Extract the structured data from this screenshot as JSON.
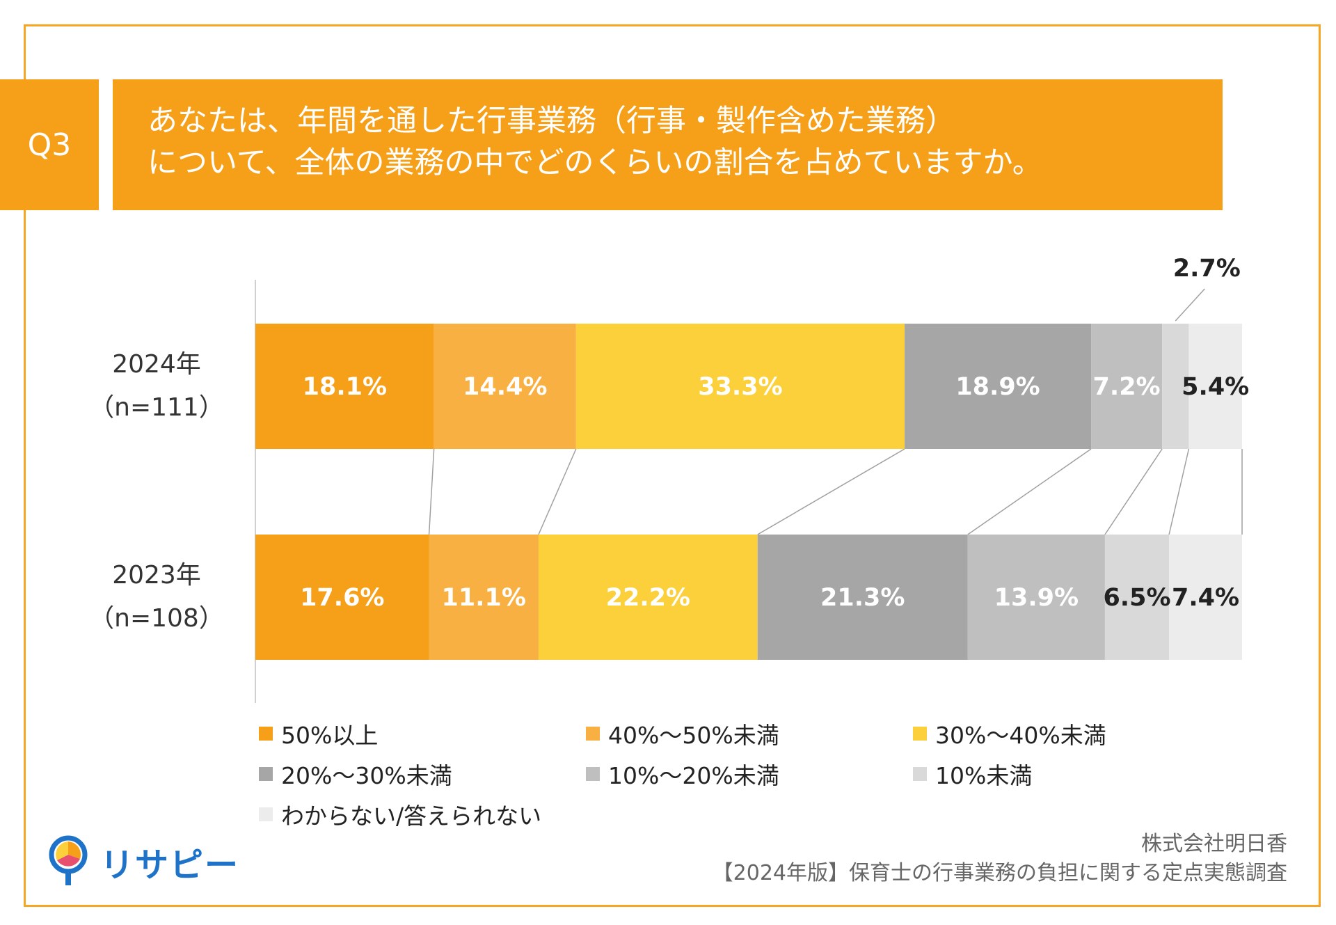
{
  "question": {
    "tag": "Q3",
    "line1": "あなたは、年間を通した行事業務（行事・製作含めた業務）",
    "line2": "について、全体の業務の中でどのくらいの割合を占めていますか。"
  },
  "chart_data": {
    "type": "bar",
    "orientation": "horizontal-stacked-100",
    "categories": [
      "2024年\n（n=111）",
      "2023年\n（n=108）"
    ],
    "row_labels": [
      {
        "year": "2024年",
        "n": "（n=111）"
      },
      {
        "year": "2023年",
        "n": "（n=108）"
      }
    ],
    "series": [
      {
        "name": "50%以上",
        "color": "#f6a01a",
        "values": [
          18.1,
          17.6
        ],
        "labels": [
          "18.1%",
          "17.6%"
        ]
      },
      {
        "name": "40%～50%未満",
        "color": "#f9b042",
        "values": [
          14.4,
          11.1
        ],
        "labels": [
          "14.4%",
          "11.1%"
        ]
      },
      {
        "name": "30%～40%未満",
        "color": "#fcd03a",
        "values": [
          33.3,
          22.2
        ],
        "labels": [
          "33.3%",
          "22.2%"
        ]
      },
      {
        "name": "20%～30%未満",
        "color": "#a6a6a6",
        "values": [
          18.9,
          21.3
        ],
        "labels": [
          "18.9%",
          "21.3%"
        ]
      },
      {
        "name": "10%～20%未満",
        "color": "#bfbfbf",
        "values": [
          7.2,
          13.9
        ],
        "labels": [
          "7.2%",
          "13.9%"
        ]
      },
      {
        "name": "10%未満",
        "color": "#d9d9d9",
        "values": [
          2.7,
          6.5
        ],
        "labels": [
          "2.7%",
          "6.5%"
        ]
      },
      {
        "name": "わからない/答えられない",
        "color": "#ececec",
        "values": [
          5.4,
          7.4
        ],
        "labels": [
          "5.4%",
          "7.4%"
        ]
      }
    ],
    "xlim": [
      0,
      100
    ],
    "legend_position": "bottom"
  },
  "legend": [
    {
      "label": "50%以上",
      "color": "#f6a01a"
    },
    {
      "label": "40%～50%未満",
      "color": "#f9b042"
    },
    {
      "label": "30%～40%未満",
      "color": "#fcd03a"
    },
    {
      "label": "20%～30%未満",
      "color": "#a6a6a6"
    },
    {
      "label": "10%～20%未満",
      "color": "#bfbfbf"
    },
    {
      "label": "10%未満",
      "color": "#d9d9d9"
    },
    {
      "label": "わからない/答えられない",
      "color": "#ececec"
    }
  ],
  "logo": {
    "text": "リサピー",
    "icon": "risapy-pin-logo-icon"
  },
  "credit": {
    "company": "株式会社明日香",
    "survey": "【2024年版】保育士の行事業務の負担に関する定点実態調査"
  },
  "colors": {
    "accent": "#f6a01a",
    "frame": "#f6a623",
    "logo": "#1e73c8"
  }
}
